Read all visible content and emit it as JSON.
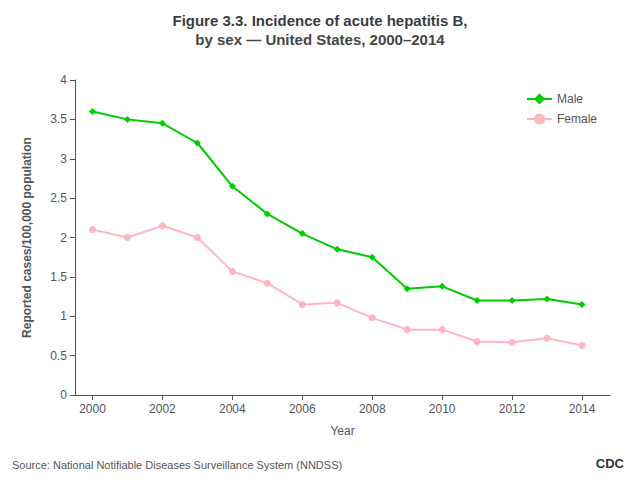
{
  "chart_data": {
    "type": "line",
    "title": "Figure 3.3. Incidence of acute hepatitis B,",
    "subtitle": "by sex — United States, 2000–2014",
    "xlabel": "Year",
    "ylabel": "Reported cases/100,000 population",
    "x": [
      2000,
      2001,
      2002,
      2003,
      2004,
      2005,
      2006,
      2007,
      2008,
      2009,
      2010,
      2011,
      2012,
      2013,
      2014
    ],
    "series": [
      {
        "name": "Male",
        "color": "#00CC00",
        "marker": "diamond",
        "values": [
          3.6,
          3.5,
          3.45,
          3.2,
          2.65,
          2.3,
          2.05,
          1.85,
          1.75,
          1.35,
          1.38,
          1.2,
          1.2,
          1.22,
          1.15
        ]
      },
      {
        "name": "Female",
        "color": "#FFB6C1",
        "marker": "circle",
        "values": [
          2.1,
          2.0,
          2.15,
          2.0,
          1.57,
          1.42,
          1.15,
          1.17,
          0.98,
          0.83,
          0.83,
          0.68,
          0.67,
          0.72,
          0.63
        ]
      }
    ],
    "xlim": [
      1999.5,
      2014.8
    ],
    "xticks": [
      2000,
      2002,
      2004,
      2006,
      2008,
      2010,
      2012,
      2014
    ],
    "ylim": [
      0,
      4
    ],
    "yticks": [
      0,
      0.5,
      1,
      1.5,
      2,
      2.5,
      3,
      3.5,
      4
    ],
    "grid": false,
    "legend": "upper right",
    "annotations": [
      "Source: National Notifiable Diseases Surveillance System (NNDSS)",
      "CDC"
    ]
  }
}
